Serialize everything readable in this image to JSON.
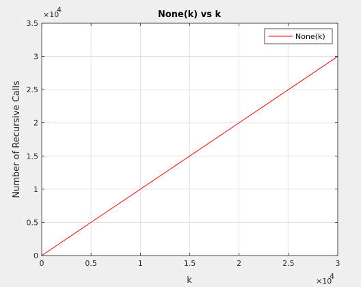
{
  "chart_data": {
    "type": "line",
    "title": "None(k) vs k",
    "xlabel": "k",
    "ylabel": "Number of Recursive Calls",
    "xlim": [
      0,
      30000
    ],
    "ylim": [
      0,
      35000
    ],
    "x_ticks": [
      0,
      5000,
      10000,
      15000,
      20000,
      25000,
      30000
    ],
    "y_ticks": [
      0,
      5000,
      10000,
      15000,
      20000,
      25000,
      30000,
      35000
    ],
    "x_tick_labels": [
      "0",
      "0.5",
      "1",
      "1.5",
      "2",
      "2.5",
      "3"
    ],
    "y_tick_labels": [
      "0",
      "0.5",
      "1",
      "1.5",
      "2",
      "2.5",
      "3",
      "3.5"
    ],
    "x_exponent_label": "×10",
    "x_exponent_power": "4",
    "y_exponent_label": "×10",
    "y_exponent_power": "4",
    "grid": true,
    "legend_position": "top-right",
    "series": [
      {
        "name": "None(k)",
        "color": "#ff0000",
        "x": [
          0,
          30000
        ],
        "y": [
          0,
          30000
        ]
      }
    ]
  }
}
